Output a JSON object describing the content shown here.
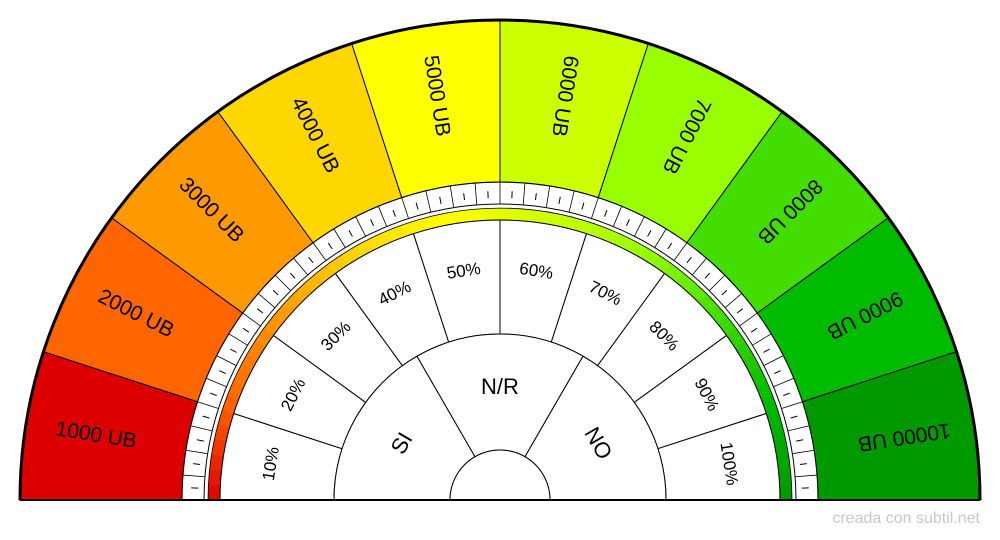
{
  "outer_ring": {
    "labels": [
      "1000 UB",
      "2000 UB",
      "3000 UB",
      "4000 UB",
      "5000 UB",
      "6000 UB",
      "7000 UB",
      "8000 UB",
      "9000 UB",
      "10000 UB"
    ],
    "colors": [
      "#dd0000",
      "#ff6600",
      "#ff9900",
      "#ffd700",
      "#ffff00",
      "#ccff00",
      "#99ff00",
      "#44dd00",
      "#00bb00",
      "#009900"
    ]
  },
  "percent_ring": {
    "labels": [
      "10%",
      "20%",
      "30%",
      "40%",
      "50%",
      "60%",
      "70%",
      "80%",
      "90%",
      "100%"
    ]
  },
  "answers": {
    "labels": [
      "SI",
      "N/R",
      "NO"
    ]
  },
  "footer": {
    "credit": "creada con subtil.net"
  }
}
